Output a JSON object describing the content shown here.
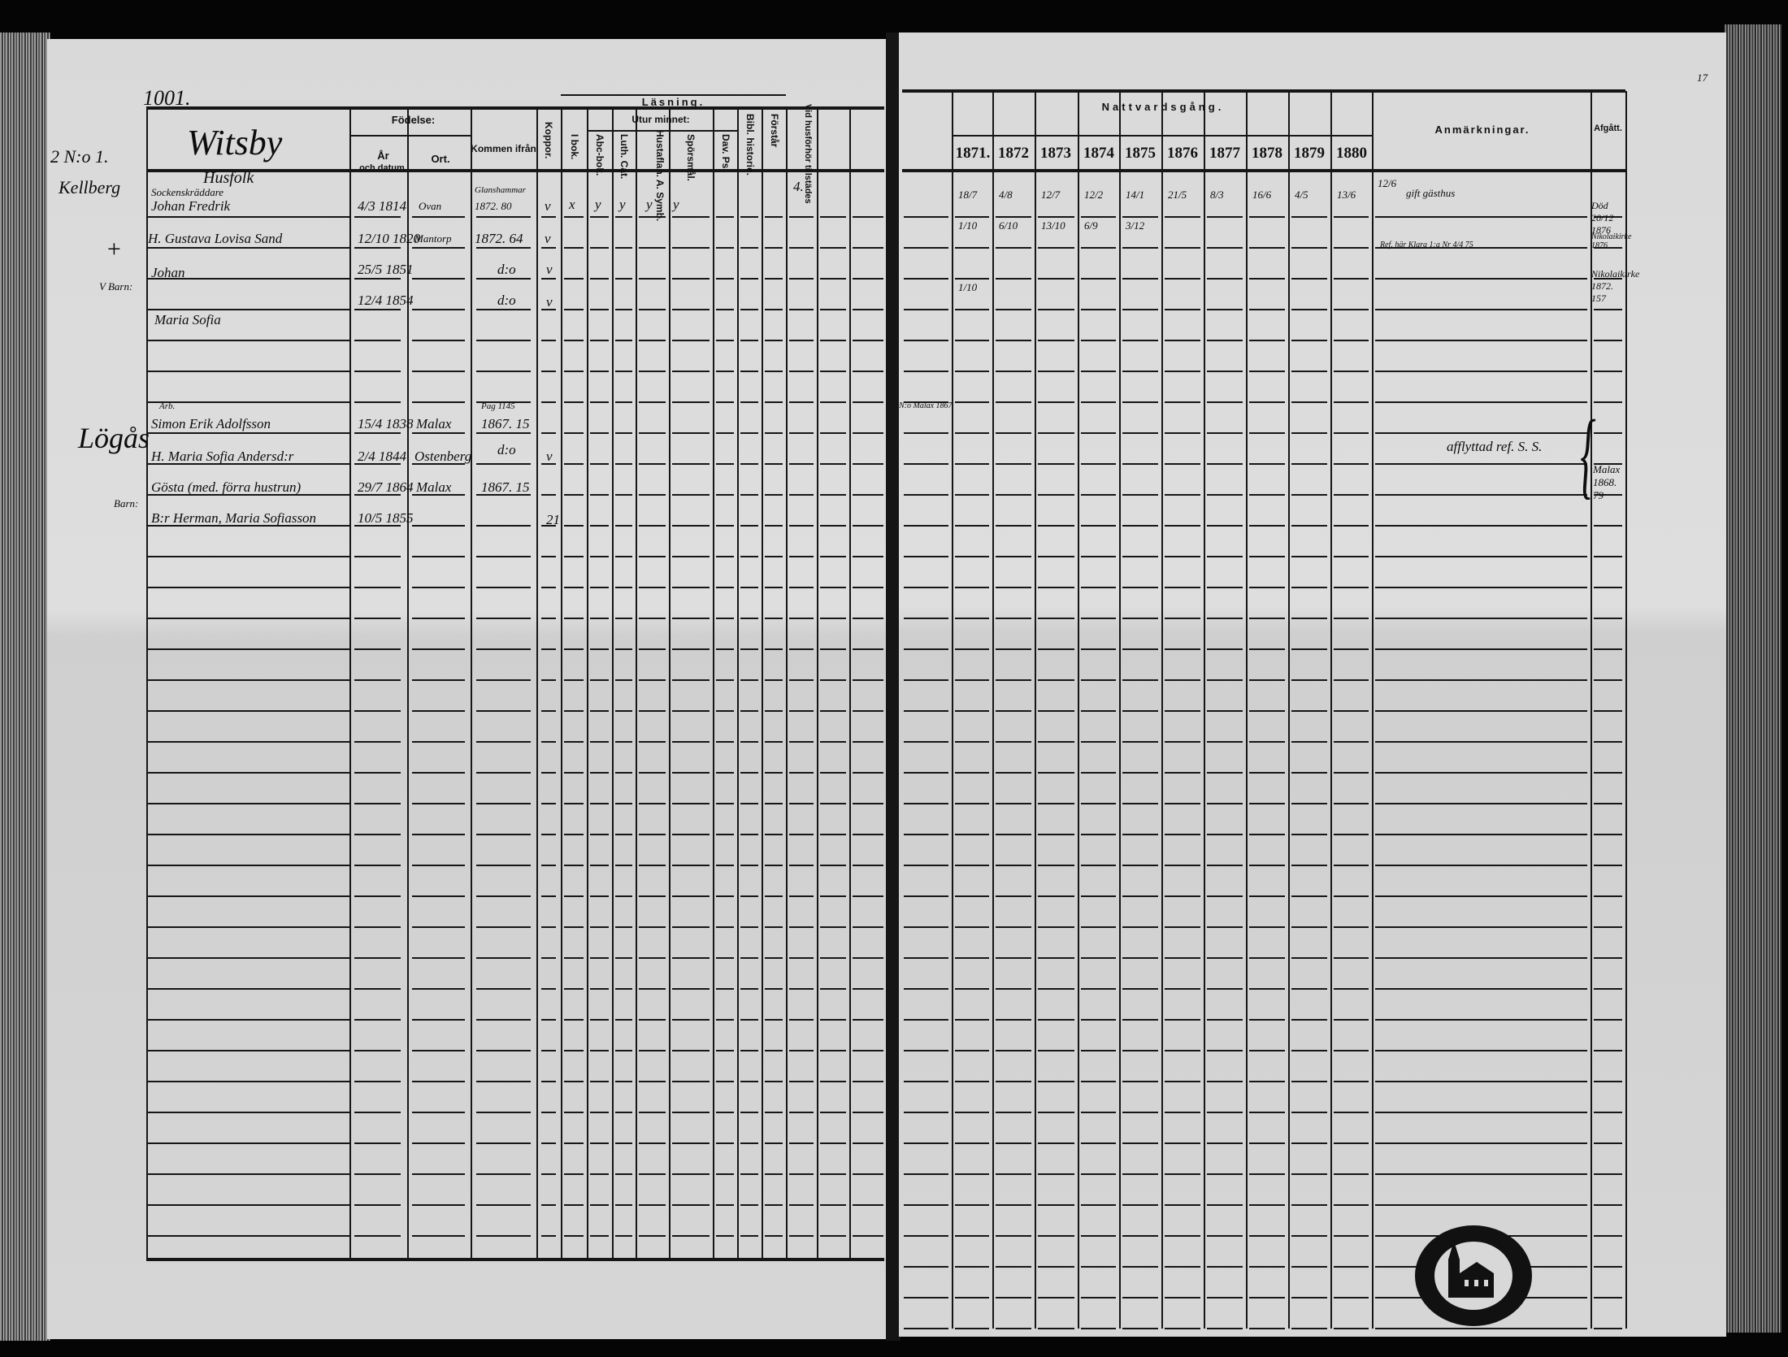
{
  "left_page": {
    "page_number": "1001.",
    "place_heading": "Witsby",
    "sub_heading": "Husfolk",
    "margin": {
      "number": "2 N:o 1.",
      "name": "Kellberg",
      "cross": "+",
      "barn": "V Barn:",
      "lagas": "Lögås",
      "barn2": "Barn:"
    },
    "headers": {
      "fodelse": "Födelse:",
      "ar": "År",
      "och_datum": "och datum.",
      "ort": "Ort.",
      "kommen": "Kommen ifrån",
      "koppor": "Koppor.",
      "lasning": "Läsning.",
      "utur_minnet": "Utur minnet:",
      "i_bok": "I bok.",
      "abe_bok": "Abc-bok.",
      "luth_cat": "Luth. Cat.",
      "hustaflan": "Hustaflan. A. Symb.",
      "sporsmal": "Spörsmål.",
      "dav_ps": "Dav. Ps.",
      "bibl": "Bibl. historie.",
      "forstar": "Förstår",
      "vid_husforhor": "Vid husförhör tillstädes"
    },
    "rows": [
      {
        "title": "Sockenskräddare",
        "name": "Johan Fredrik",
        "date": "4/3 1814",
        "ort": "Ovan",
        "kommen_top": "Glanshammar",
        "kommen": "1872. 80",
        "koppor": "v",
        "lasning": [
          "x",
          "y",
          "y",
          "y",
          "y"
        ],
        "vid": "4."
      },
      {
        "name": "H. Gustava Lovisa Sand",
        "date": "12/10 1820",
        "ort": "Mantorp",
        "kommen": "1872. 64",
        "koppor": "v"
      },
      {
        "name": "Johan",
        "date": "25/5 1851",
        "kommen": "d:o",
        "koppor": "v"
      },
      {
        "name": "Maria Sofia",
        "date": "12/4 1854",
        "kommen": "d:o",
        "koppor": "v"
      },
      {
        "title": "Arb.",
        "name": "Simon Erik Adolfsson",
        "date": "15/4 1838",
        "ort": "Malax",
        "kommen_top": "Pag 1145",
        "kommen": "1867. 15"
      },
      {
        "name": "H. Maria Sofia Andersd:r",
        "date": "2/4 1844",
        "ort": "Ostenberg",
        "kommen": "d:o",
        "koppor": "v"
      },
      {
        "name": "Gösta (med. förra hustrun)",
        "date": "29/7 1864",
        "ort": "Malax",
        "kommen": "1867. 15"
      },
      {
        "name": "B:r Herman, Maria Sofiasson",
        "date": "10/5 1855",
        "koppor": "21"
      }
    ]
  },
  "right_page": {
    "page_number": "17",
    "headers": {
      "nattvardsgang": "Nattvardsgång.",
      "anmarkningar": "Anmärkningar.",
      "afgatt": "Afgått."
    },
    "years": [
      "1871.",
      "1872",
      "1873",
      "1874",
      "1875",
      "1876",
      "1877",
      "1878",
      "1879",
      "1880"
    ],
    "communion": [
      [
        "18/7",
        "4/8",
        "12/7",
        "12/2",
        "14/1",
        "21/5",
        "8/3",
        "16/6",
        "4/5",
        "13/6"
      ],
      [
        "1/10",
        "6/10",
        "13/10",
        "6/9",
        "3/12"
      ],
      [],
      [
        "1/10"
      ]
    ],
    "notes": {
      "row1_date": "12/6",
      "row1": "gift gästhus",
      "row3": "Ref. här Klara 1:a Nr 4/4 75",
      "lagas": "afflyttad ref. S. S.",
      "margin_moved": "N:o Malax 1867"
    },
    "afgatt": {
      "row2": "Död 20/12 1876",
      "row3": "Nikolaikirke 1876 ",
      "row4": "Nikolaikirke 1872. 157",
      "lagas": "Malax 1868. 79"
    }
  }
}
